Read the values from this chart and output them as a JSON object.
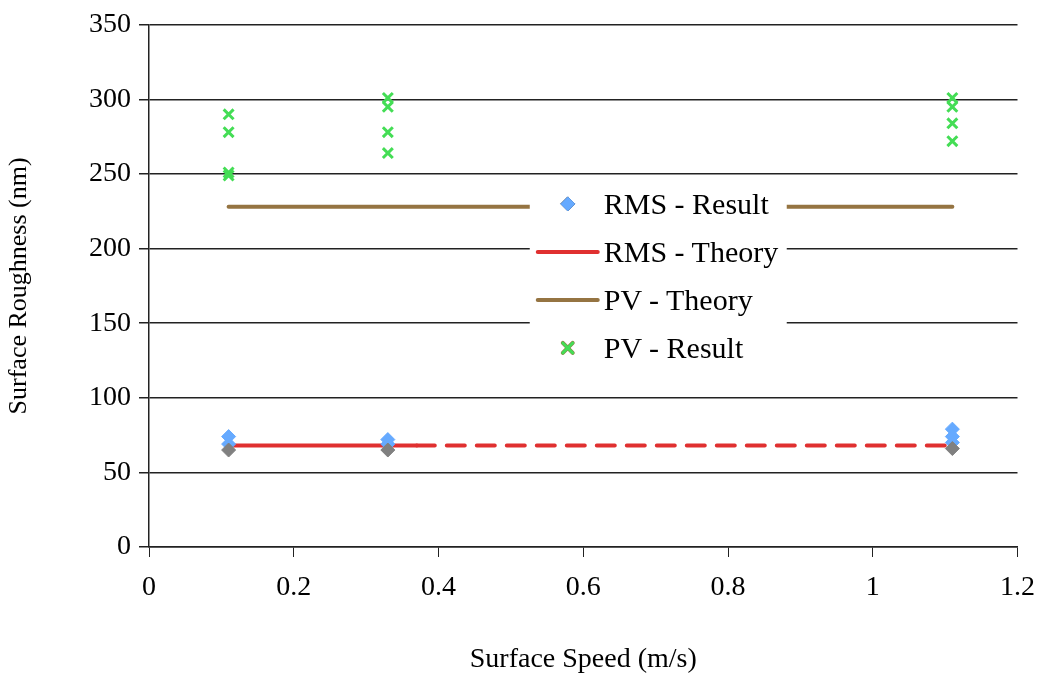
{
  "chart_data": {
    "type": "scatter",
    "xlabel": "Surface Speed (m/s)",
    "ylabel": "Surface Roughness (nm)",
    "xlim": [
      0,
      1.2
    ],
    "xticks": [
      0,
      0.2,
      0.4,
      0.6,
      0.8,
      1,
      1.2
    ],
    "ylim": [
      0,
      350
    ],
    "yticks": [
      0,
      50,
      100,
      150,
      200,
      250,
      300,
      350
    ],
    "grid": "y",
    "legend": "center",
    "series": [
      {
        "type": "scatter",
        "color": "#808080",
        "marker": "diamond",
        "x": [
          0.11,
          0.33,
          1.11
        ],
        "values": [
          65,
          65,
          66
        ]
      },
      {
        "type": "scatter",
        "name": "RMS - Result",
        "color": "#66aaff",
        "marker": "diamond",
        "x": [
          0.11,
          0.11,
          0.33,
          0.33,
          1.11,
          1.11,
          1.11
        ],
        "values": [
          74,
          69,
          72,
          69,
          79,
          74,
          70
        ]
      },
      {
        "type": "line",
        "name": "RMS - Theory",
        "color": "#e03030",
        "line_style": "solid",
        "marker": "none",
        "x": [
          0.11,
          0.37
        ],
        "values": [
          68,
          68
        ]
      },
      {
        "type": "line",
        "color": "#e03030",
        "line_style": "dashed",
        "marker": "none",
        "x": [
          0.37,
          1.11
        ],
        "values": [
          68,
          68
        ]
      },
      {
        "type": "line",
        "name": "PV - Theory",
        "color": "#957442",
        "line_style": "solid",
        "marker": "none",
        "x": [
          0.11,
          1.11
        ],
        "values": [
          228,
          228
        ]
      },
      {
        "type": "scatter",
        "name": "PV - Result",
        "color": "#44dd55",
        "marker": "cross",
        "x": [
          0.11,
          0.11,
          0.11,
          0.11,
          0.33,
          0.33,
          0.33,
          0.33,
          1.11,
          1.11,
          1.11,
          1.11
        ],
        "values": [
          290,
          278,
          251,
          249,
          301,
          295,
          278,
          264,
          301,
          295,
          284,
          272
        ]
      }
    ]
  }
}
